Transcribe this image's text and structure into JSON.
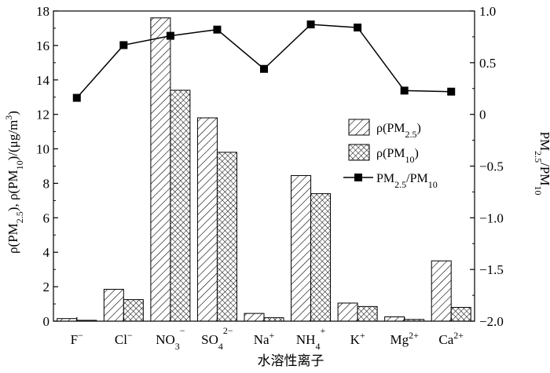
{
  "chart_data": {
    "type": "bar",
    "xlabel": "水溶性离子",
    "categories": [
      {
        "base": "F",
        "sup": "−",
        "sub": "",
        "sup2": ""
      },
      {
        "base": "Cl",
        "sup": "−",
        "sub": "",
        "sup2": ""
      },
      {
        "base": "NO",
        "sub": "3",
        "sup": "",
        "sup2": "−"
      },
      {
        "base": "SO",
        "sub": "4",
        "sup": "",
        "sup2": "2−"
      },
      {
        "base": "Na",
        "sup": "+",
        "sub": "",
        "sup2": ""
      },
      {
        "base": "NH",
        "sub": "4",
        "sup": "",
        "sup2": "+"
      },
      {
        "base": "K",
        "sup": "+",
        "sub": "",
        "sup2": ""
      },
      {
        "base": "Mg",
        "sup": "2+",
        "sub": "",
        "sup2": ""
      },
      {
        "base": "Ca",
        "sup": "2+",
        "sub": "",
        "sup2": ""
      }
    ],
    "series": [
      {
        "name": "ρ(PM2.5)",
        "kind": "bar",
        "pattern": "diagonal-hatch",
        "values": [
          0.15,
          1.85,
          17.6,
          11.8,
          0.45,
          8.45,
          1.05,
          0.25,
          3.5
        ]
      },
      {
        "name": "ρ(PM10)",
        "kind": "bar",
        "pattern": "cross-hatch",
        "values": [
          0.05,
          1.25,
          13.4,
          9.8,
          0.2,
          7.4,
          0.85,
          0.1,
          0.8
        ]
      },
      {
        "name": "PM2.5/PM10",
        "kind": "line",
        "marker": "square",
        "axis": "right",
        "values": [
          0.16,
          0.67,
          0.76,
          0.82,
          0.44,
          0.87,
          0.84,
          0.23,
          0.22
        ]
      }
    ],
    "y_left": {
      "label": "ρ(PM2.5), ρ(PM10)/(μg/m3)",
      "range": [
        0,
        18
      ],
      "ticks": [
        "0",
        "2",
        "4",
        "6",
        "8",
        "10",
        "12",
        "14",
        "16",
        "18"
      ]
    },
    "y_right": {
      "label": "PM2.5/PM10",
      "range": [
        -2.0,
        1.0
      ],
      "ticks": [
        "−2.0",
        "−1.5",
        "−1.0",
        "−0.5",
        "0",
        "0.5",
        "1.0"
      ]
    },
    "legend": {
      "placement": "right-middle",
      "entries": [
        {
          "base": "ρ(PM",
          "sub": "2.5",
          "tail": ")"
        },
        {
          "base": "ρ(PM",
          "sub": "10",
          "tail": ")"
        },
        {
          "base": "PM",
          "sub": "2.5",
          "mid": "/PM",
          "sub2": "10"
        }
      ]
    },
    "grid": false,
    "colors": {
      "axis": "#000000",
      "bar_fill": "#ffffff",
      "line": "#000000"
    }
  }
}
